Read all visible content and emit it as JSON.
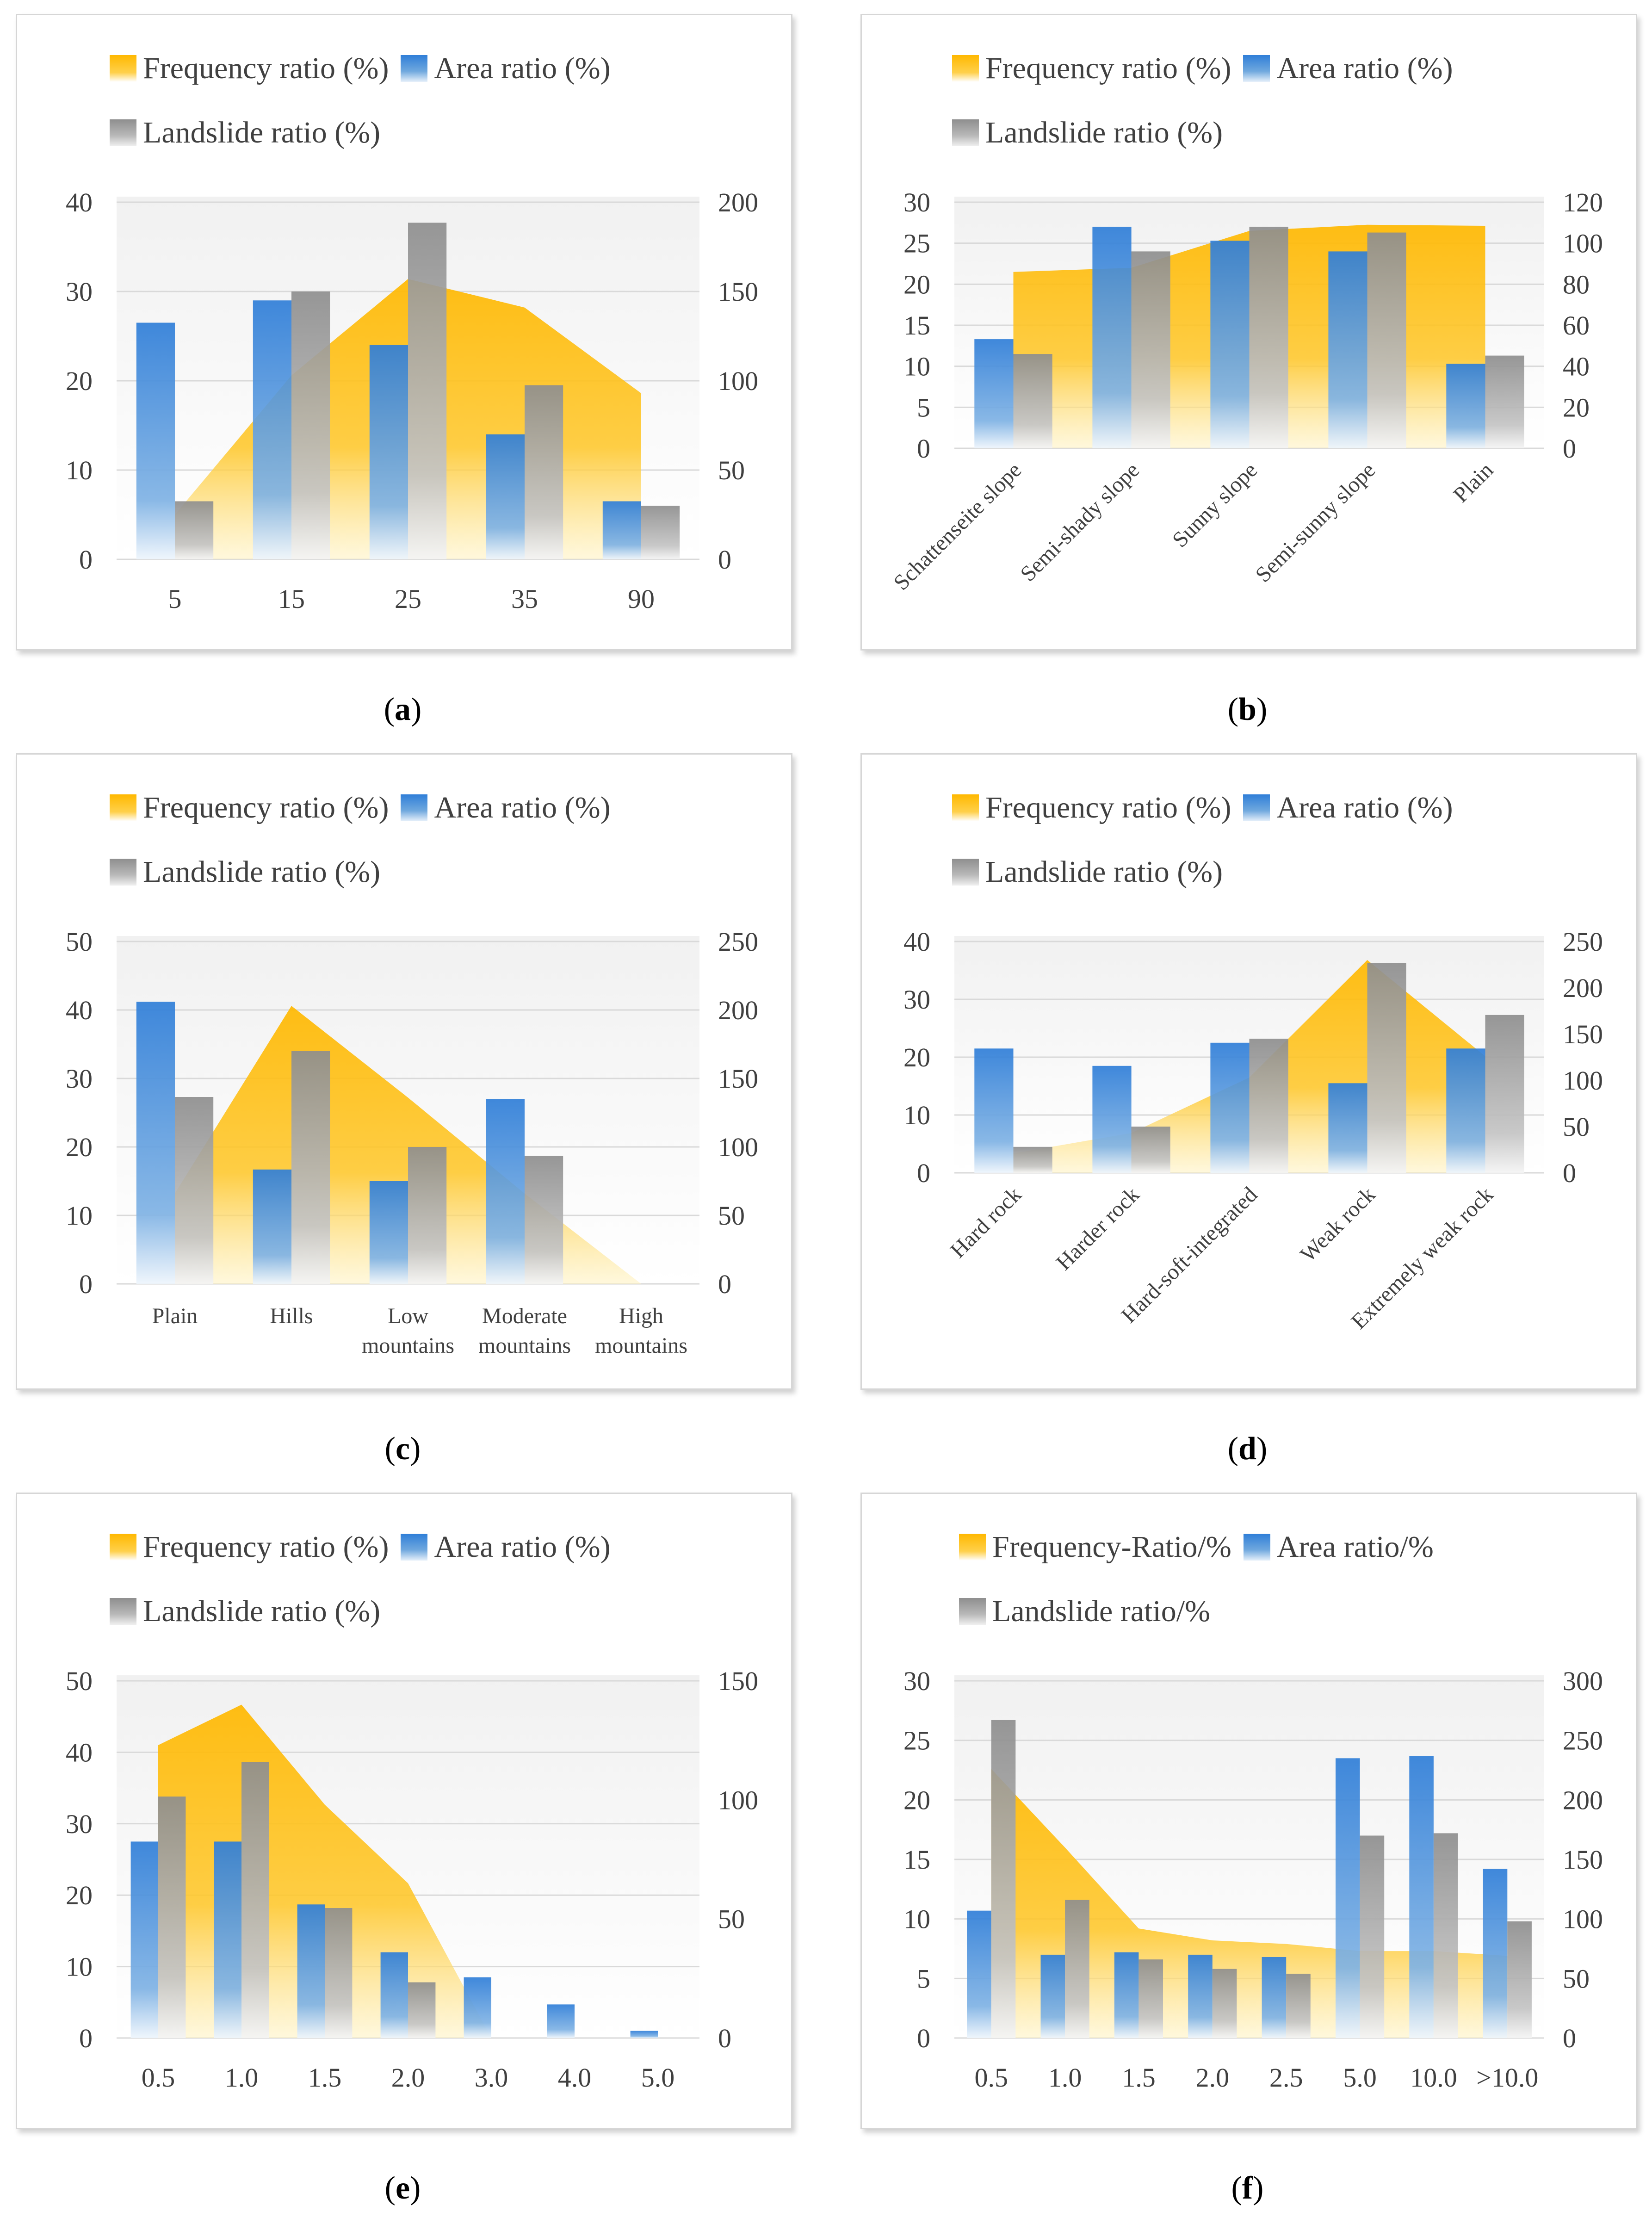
{
  "colors": {
    "frequency": "#ffb800",
    "area": "#2f7ed8",
    "landslide": "#8e8e8e",
    "grid": "#d9d9d9",
    "text": "#404040"
  },
  "chart_data": [
    {
      "id": "a",
      "type": "bar",
      "caption_letter": "a",
      "legend": {
        "frequency": "Frequency ratio (%)",
        "area": "Area ratio (%)",
        "landslide": "Landslide ratio (%)"
      },
      "categories": [
        "5",
        "15",
        "25",
        "35",
        "90"
      ],
      "left_axis": {
        "min": 0,
        "max": 40,
        "ticks": [
          "0",
          "10",
          "20",
          "30",
          "40"
        ]
      },
      "right_axis": {
        "min": 0,
        "max": 200,
        "ticks": [
          "0",
          "50",
          "100",
          "150",
          "200"
        ]
      },
      "series": [
        {
          "name": "Area ratio (%)",
          "axis": "left",
          "values": [
            26.5,
            29,
            24,
            14,
            6.5
          ]
        },
        {
          "name": "Landslide ratio (%)",
          "axis": "left",
          "values": [
            6.5,
            30,
            37.7,
            19.5,
            6
          ]
        },
        {
          "name": "Frequency ratio (%)",
          "axis": "right",
          "type": "area",
          "values": [
            25,
            103,
            157,
            141,
            93
          ]
        }
      ]
    },
    {
      "id": "b",
      "type": "bar",
      "caption_letter": "b",
      "legend": {
        "frequency": "Frequency ratio (%)",
        "area": "Area ratio (%)",
        "landslide": "Landslide ratio (%)"
      },
      "categories": [
        "Schattenseite slope",
        "Semi-shady slope",
        "Sunny slope",
        "Semi-sunny slope",
        "Plain"
      ],
      "rotate_labels": true,
      "left_axis": {
        "min": 0,
        "max": 30,
        "ticks": [
          "0",
          "5",
          "10",
          "15",
          "20",
          "25",
          "30"
        ]
      },
      "right_axis": {
        "min": 0,
        "max": 120,
        "ticks": [
          "0",
          "20",
          "40",
          "60",
          "80",
          "100",
          "120"
        ]
      },
      "series": [
        {
          "name": "Area ratio (%)",
          "axis": "left",
          "values": [
            13.3,
            27,
            25.3,
            24,
            10.3
          ]
        },
        {
          "name": "Landslide ratio (%)",
          "axis": "left",
          "values": [
            11.5,
            24,
            27,
            26.3,
            11.3
          ]
        },
        {
          "name": "Frequency ratio (%)",
          "axis": "right",
          "type": "area",
          "values": [
            86,
            88,
            106,
            109,
            108.5
          ]
        }
      ]
    },
    {
      "id": "c",
      "type": "bar",
      "caption_letter": "c",
      "legend": {
        "frequency": "Frequency ratio (%)",
        "area": "Area ratio (%)",
        "landslide": "Landslide ratio (%)"
      },
      "categories": [
        "Plain",
        "Hills",
        "Low mountains",
        "Moderate mountains",
        "High mountains"
      ],
      "category_lines": [
        [
          "Plain"
        ],
        [
          "Hills"
        ],
        [
          "Low",
          "mountains"
        ],
        [
          "Moderate",
          "mountains"
        ],
        [
          "High",
          "mountains"
        ]
      ],
      "left_axis": {
        "min": 0,
        "max": 50,
        "ticks": [
          "0",
          "10",
          "20",
          "30",
          "40",
          "50"
        ]
      },
      "right_axis": {
        "min": 0,
        "max": 250,
        "ticks": [
          "0",
          "50",
          "100",
          "150",
          "200",
          "250"
        ]
      },
      "series": [
        {
          "name": "Area ratio (%)",
          "axis": "left",
          "values": [
            41.2,
            16.7,
            15,
            27,
            0
          ]
        },
        {
          "name": "Landslide ratio (%)",
          "axis": "left",
          "values": [
            27.3,
            34,
            20,
            18.7,
            0
          ]
        },
        {
          "name": "Frequency ratio (%)",
          "axis": "right",
          "type": "area",
          "values": [
            66,
            203,
            136,
            66,
            0
          ]
        }
      ]
    },
    {
      "id": "d",
      "type": "bar",
      "caption_letter": "d",
      "legend": {
        "frequency": "Frequency ratio (%)",
        "area": "Area ratio (%)",
        "landslide": "Landslide ratio (%)"
      },
      "categories": [
        "Hard rock",
        "Harder rock",
        "Hard-soft-integrated",
        "Weak rock",
        "Extremely weak rock"
      ],
      "rotate_labels": true,
      "left_axis": {
        "min": 0,
        "max": 40,
        "ticks": [
          "0",
          "10",
          "20",
          "30",
          "40"
        ]
      },
      "right_axis": {
        "min": 0,
        "max": 250,
        "ticks": [
          "0",
          "50",
          "100",
          "150",
          "200",
          "250"
        ]
      },
      "series": [
        {
          "name": "Area ratio (%)",
          "axis": "left",
          "values": [
            21.5,
            18.5,
            22.5,
            15.5,
            21.5
          ]
        },
        {
          "name": "Landslide ratio (%)",
          "axis": "left",
          "values": [
            4.5,
            8,
            23.2,
            36.3,
            27.3
          ]
        },
        {
          "name": "Frequency ratio (%)",
          "axis": "right",
          "type": "area",
          "values": [
            21,
            43,
            103,
            230,
            126
          ]
        }
      ]
    },
    {
      "id": "e",
      "type": "bar",
      "caption_letter": "e",
      "legend": {
        "frequency": "Frequency ratio (%)",
        "area": "Area ratio (%)",
        "landslide": "Landslide ratio (%)"
      },
      "categories": [
        "0.5",
        "1.0",
        "1.5",
        "2.0",
        "3.0",
        "4.0",
        "5.0"
      ],
      "left_axis": {
        "min": 0,
        "max": 50,
        "ticks": [
          "0",
          "10",
          "20",
          "30",
          "40",
          "50"
        ]
      },
      "right_axis": {
        "min": 0,
        "max": 150,
        "ticks": [
          "0",
          "50",
          "100",
          "150"
        ]
      },
      "series": [
        {
          "name": "Area ratio (%)",
          "axis": "left",
          "values": [
            27.5,
            27.5,
            18.7,
            12,
            8.5,
            4.7,
            1
          ]
        },
        {
          "name": "Landslide ratio (%)",
          "axis": "left",
          "values": [
            33.8,
            38.6,
            18.2,
            7.8,
            0,
            0,
            0
          ]
        },
        {
          "name": "Frequency ratio (%)",
          "axis": "right",
          "type": "area",
          "values": [
            123,
            140,
            98,
            65,
            0,
            0,
            0
          ]
        }
      ]
    },
    {
      "id": "f",
      "type": "bar",
      "caption_letter": "f",
      "legend": {
        "frequency": "Frequency-Ratio/%",
        "area": "Area ratio/%",
        "landslide": "Landslide ratio/%"
      },
      "categories": [
        "0.5",
        "1.0",
        "1.5",
        "2.0",
        "2.5",
        "5.0",
        "10.0",
        ">10.0"
      ],
      "left_axis": {
        "min": 0,
        "max": 30,
        "ticks": [
          "0",
          "5",
          "10",
          "15",
          "20",
          "25",
          "30"
        ]
      },
      "right_axis": {
        "min": 0,
        "max": 300,
        "ticks": [
          "0",
          "50",
          "100",
          "150",
          "200",
          "250",
          "300"
        ]
      },
      "series": [
        {
          "name": "Area ratio/%",
          "axis": "left",
          "values": [
            10.7,
            7,
            7.2,
            7,
            6.8,
            23.5,
            23.7,
            14.2
          ]
        },
        {
          "name": "Landslide ratio/%",
          "axis": "left",
          "values": [
            26.7,
            11.6,
            6.6,
            5.8,
            5.4,
            17,
            17.2,
            9.8
          ]
        },
        {
          "name": "Frequency ratio/%",
          "axis": "right",
          "type": "area",
          "values": [
            226,
            160,
            92,
            82,
            79,
            73,
            73,
            69
          ]
        }
      ]
    }
  ]
}
